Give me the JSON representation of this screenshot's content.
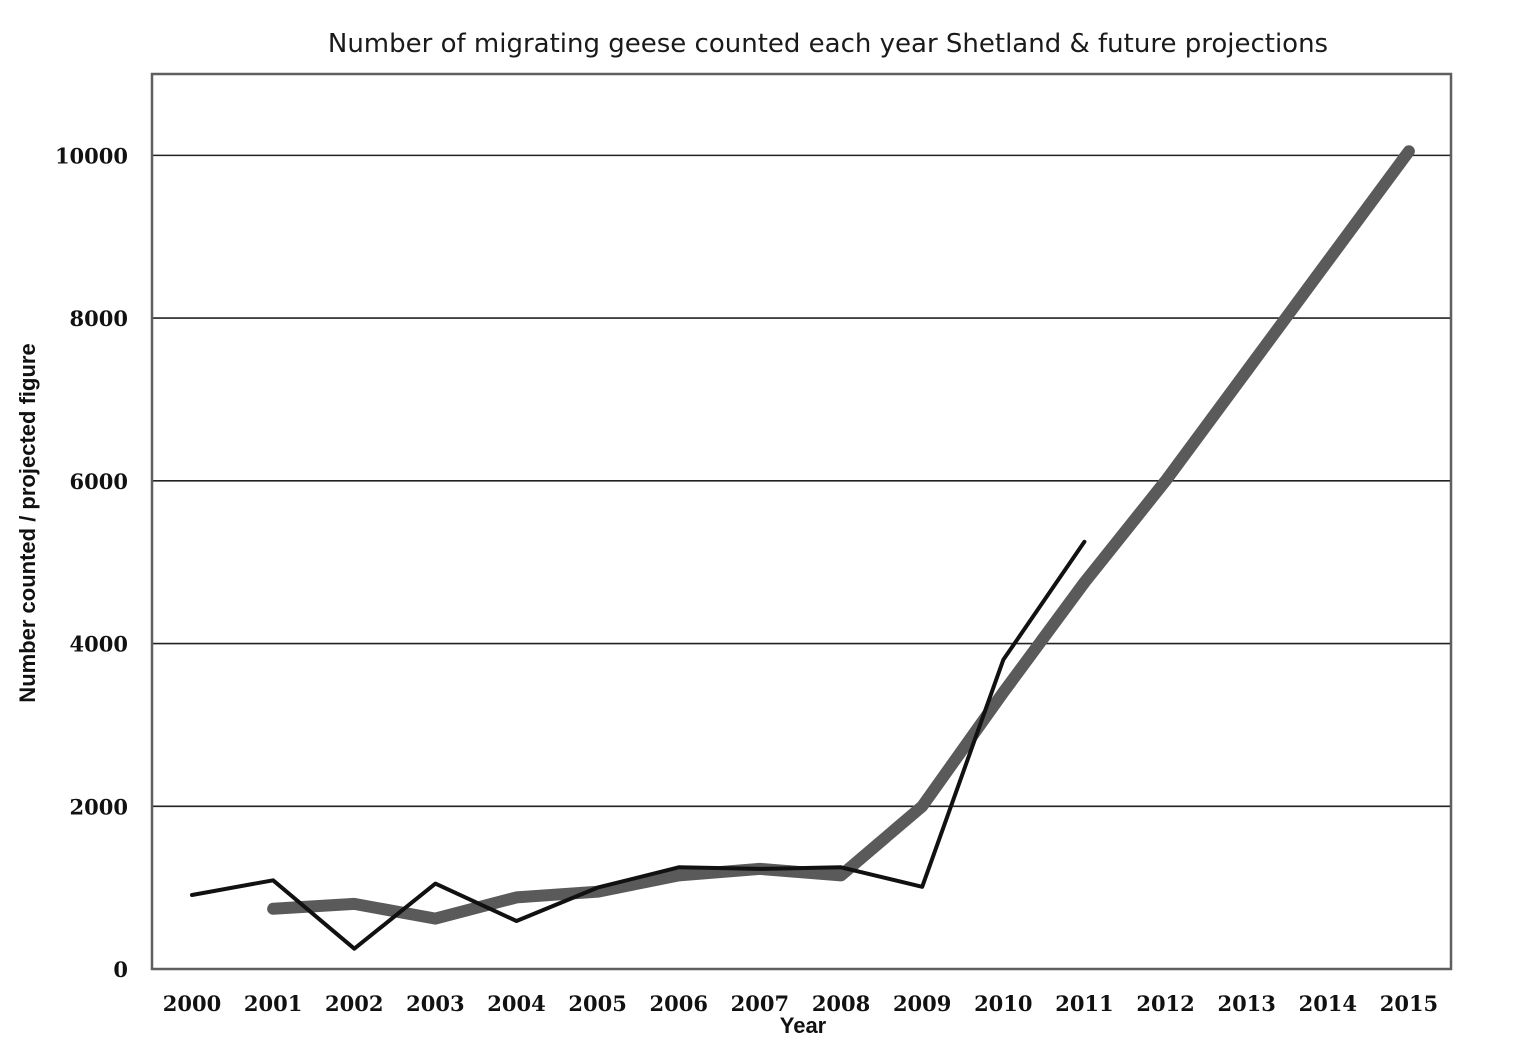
{
  "chart_data": {
    "type": "line",
    "title": "Number of migrating geese counted each year Shetland & future projections",
    "xlabel": "Year",
    "ylabel": "Number counted / projected figure",
    "categories": [
      "2000",
      "2001",
      "2002",
      "2003",
      "2004",
      "2005",
      "2006",
      "2007",
      "2008",
      "2009",
      "2010",
      "2011",
      "2012",
      "2013",
      "2014",
      "2015"
    ],
    "ylim": [
      0,
      11000
    ],
    "yticks": [
      0,
      2000,
      4000,
      6000,
      8000,
      10000
    ],
    "grid": true,
    "series": [
      {
        "color": "#111111",
        "values": [
          910,
          1090,
          250,
          1050,
          590,
          1000,
          1250,
          1230,
          1250,
          1010,
          3800,
          5250,
          null,
          null,
          null,
          null
        ]
      },
      {
        "color": "#5a5a5a",
        "values": [
          null,
          740,
          800,
          620,
          880,
          950,
          1150,
          1230,
          1150,
          2000,
          3400,
          4750,
          6000,
          7350,
          8700,
          10050
        ]
      }
    ]
  }
}
